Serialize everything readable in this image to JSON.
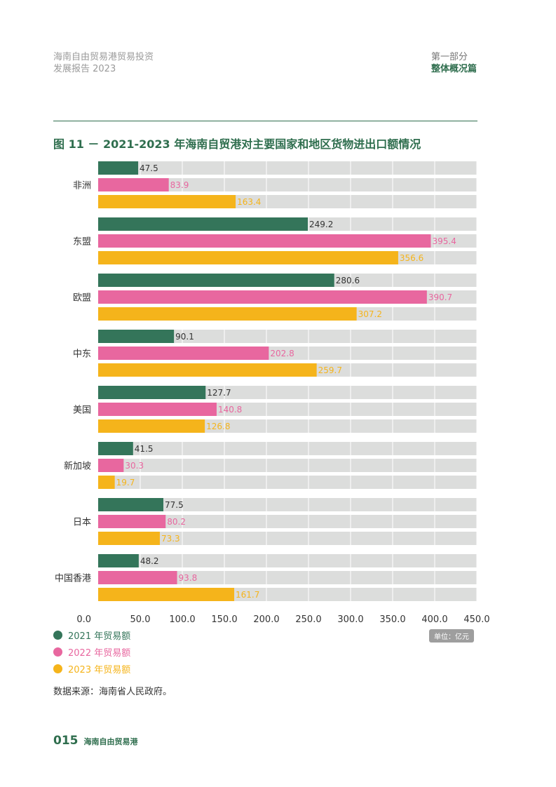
{
  "header": {
    "left_line1": "海南自由贸易港贸易投资",
    "left_line2": "发展报告 2023",
    "right_line1": "第一部分",
    "right_line2": "整体概况篇"
  },
  "figure_title": "图 11 － 2021-2023 年海南自贸港对主要国家和地区货物进出口额情况",
  "colors": {
    "y2021": "#34755a",
    "y2022": "#e8679f",
    "y2023": "#f5b41b",
    "track": "#dcdddc",
    "accent": "#2f6e4e"
  },
  "chart_data": {
    "type": "bar",
    "orientation": "horizontal",
    "categories": [
      "非洲",
      "东盟",
      "欧盟",
      "中东",
      "美国",
      "新加坡",
      "日本",
      "中国香港"
    ],
    "series": [
      {
        "name": "2021 年贸易额",
        "values": [
          47.5,
          249.2,
          280.6,
          90.1,
          127.7,
          41.5,
          77.5,
          48.2
        ]
      },
      {
        "name": "2022 年贸易额",
        "values": [
          83.9,
          395.4,
          390.7,
          202.8,
          140.8,
          30.3,
          80.2,
          93.8
        ]
      },
      {
        "name": "2023 年贸易额",
        "values": [
          163.4,
          356.6,
          307.2,
          259.7,
          126.8,
          19.7,
          73.3,
          161.7
        ]
      }
    ],
    "x_ticks": [
      "0.0",
      "50.0",
      "100.0",
      "150.0",
      "200.0",
      "250.0",
      "300.0",
      "350.0",
      "400.0",
      "450.0"
    ],
    "xlim": [
      0,
      450
    ],
    "grid": true,
    "legend_position": "bottom-left",
    "unit": "单位：亿元"
  },
  "source": "数据来源：海南省人民政府。",
  "footer": {
    "page_number": "015",
    "name": "海南自由贸易港"
  }
}
